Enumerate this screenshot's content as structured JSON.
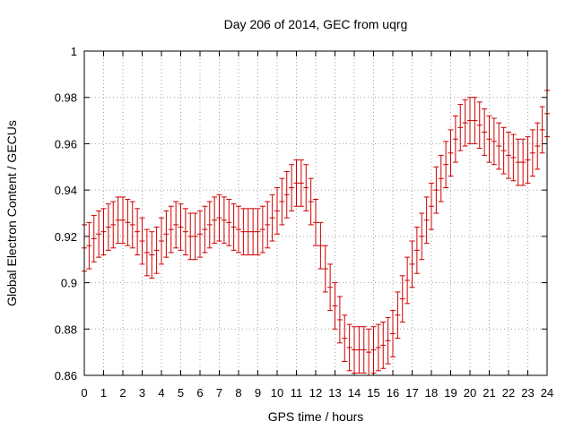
{
  "chart_data": {
    "type": "scatter",
    "title": "Day 206 of 2014, GEC from uqrg",
    "xlabel": "GPS time / hours",
    "ylabel": "Global Electron Content / GECUs",
    "xlim": [
      0,
      24
    ],
    "ylim": [
      0.86,
      1.0
    ],
    "x_ticks": [
      "0",
      "1",
      "2",
      "3",
      "4",
      "5",
      "6",
      "7",
      "8",
      "9",
      "10",
      "11",
      "12",
      "13",
      "14",
      "15",
      "16",
      "17",
      "18",
      "19",
      "20",
      "21",
      "22",
      "23",
      "24"
    ],
    "y_ticks": [
      "0.86",
      "0.88",
      "0.9",
      "0.92",
      "0.94",
      "0.96",
      "0.98",
      "1"
    ],
    "grid": true,
    "error": 0.01,
    "series_color": "#cc0000",
    "series": [
      {
        "x": [
          0.0,
          0.25,
          0.5,
          0.75,
          1.0,
          1.25,
          1.5,
          1.75,
          2.0,
          2.25,
          2.5,
          2.75,
          3.0,
          3.25,
          3.5,
          3.75,
          4.0,
          4.25,
          4.5,
          4.75,
          5.0,
          5.25,
          5.5,
          5.75,
          6.0,
          6.25,
          6.5,
          6.75,
          7.0,
          7.25,
          7.5,
          7.75,
          8.0,
          8.25,
          8.5,
          8.75,
          9.0,
          9.25,
          9.5,
          9.75,
          10.0,
          10.25,
          10.5,
          10.75,
          11.0,
          11.25,
          11.5,
          11.75,
          12.0,
          12.25,
          12.5,
          12.75,
          13.0,
          13.25,
          13.5,
          13.75,
          14.0,
          14.25,
          14.5,
          14.75,
          15.0,
          15.25,
          15.5,
          15.75,
          16.0,
          16.25,
          16.5,
          16.75,
          17.0,
          17.25,
          17.5,
          17.75,
          18.0,
          18.25,
          18.5,
          18.75,
          19.0,
          19.25,
          19.5,
          19.75,
          20.0,
          20.25,
          20.5,
          20.75,
          21.0,
          21.25,
          21.5,
          21.75,
          22.0,
          22.25,
          22.5,
          22.75,
          23.0,
          23.25,
          23.5,
          23.75,
          24.0
        ],
        "y": [
          0.915,
          0.916,
          0.919,
          0.921,
          0.922,
          0.924,
          0.925,
          0.927,
          0.927,
          0.926,
          0.925,
          0.922,
          0.918,
          0.913,
          0.912,
          0.914,
          0.918,
          0.921,
          0.923,
          0.925,
          0.924,
          0.922,
          0.92,
          0.92,
          0.921,
          0.923,
          0.925,
          0.927,
          0.928,
          0.927,
          0.926,
          0.924,
          0.923,
          0.922,
          0.922,
          0.922,
          0.922,
          0.923,
          0.925,
          0.928,
          0.931,
          0.935,
          0.938,
          0.941,
          0.943,
          0.943,
          0.941,
          0.935,
          0.926,
          0.916,
          0.906,
          0.898,
          0.89,
          0.884,
          0.876,
          0.872,
          0.871,
          0.871,
          0.871,
          0.87,
          0.871,
          0.872,
          0.873,
          0.875,
          0.878,
          0.886,
          0.893,
          0.901,
          0.908,
          0.914,
          0.92,
          0.927,
          0.933,
          0.94,
          0.945,
          0.951,
          0.956,
          0.962,
          0.967,
          0.969,
          0.97,
          0.97,
          0.968,
          0.965,
          0.962,
          0.961,
          0.959,
          0.957,
          0.955,
          0.954,
          0.952,
          0.952,
          0.953,
          0.956,
          0.959,
          0.966,
          0.973
        ]
      }
    ]
  }
}
